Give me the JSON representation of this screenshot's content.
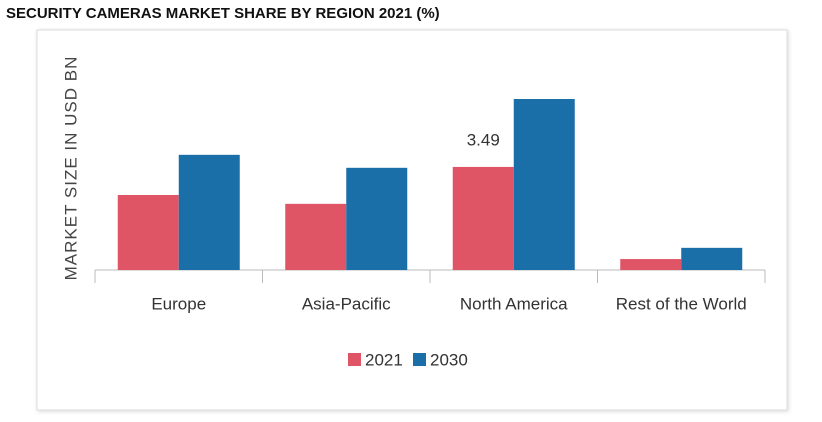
{
  "chart_data": {
    "type": "bar",
    "title": "SECURITY CAMERAS MARKET SHARE BY REGION 2021 (%)",
    "y_label": "MARKET SIZE IN USD BN",
    "categories": [
      "Europe",
      "Asia-Pacific",
      "North America",
      "Rest of the World"
    ],
    "series": [
      {
        "name": "2021",
        "color": "#e05566",
        "values": [
          2.54,
          2.24,
          3.49,
          0.37
        ]
      },
      {
        "name": "2030",
        "color": "#1a6fa8",
        "values": [
          3.9,
          3.46,
          5.79,
          0.75
        ]
      }
    ],
    "labeled_points": [
      [
        0,
        2
      ]
    ]
  }
}
